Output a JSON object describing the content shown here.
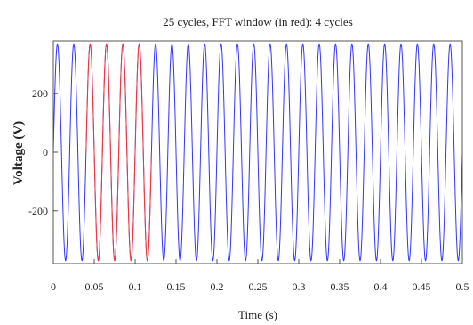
{
  "chart_data": {
    "type": "line",
    "title": "25 cycles, FFT window (in red): 4 cycles",
    "xlabel": "Time (s)",
    "ylabel": "Voltage (V)",
    "xlim": [
      0,
      0.5
    ],
    "ylim": [
      -380,
      380
    ],
    "xticks": [
      0,
      0.05,
      0.1,
      0.15,
      0.2,
      0.25,
      0.3,
      0.35,
      0.4,
      0.45,
      0.5
    ],
    "xtick_labels": [
      "0",
      "0.05",
      "0.1",
      "0.15",
      "0.2",
      "0.25",
      "0.3",
      "0.35",
      "0.4",
      "0.45",
      "0.5"
    ],
    "yticks": [
      -200,
      0,
      200
    ],
    "ytick_labels": [
      "-200",
      "0",
      "200"
    ],
    "grid": false,
    "series": [
      {
        "function": "sine",
        "amplitude": 370,
        "frequency_hz": 50,
        "x_range": [
          0,
          0.5
        ],
        "color": "#3333ff"
      },
      {
        "function": "sine",
        "amplitude": 370,
        "frequency_hz": 50,
        "x_range": [
          0.04,
          0.12
        ],
        "color": "#ff3333"
      }
    ]
  }
}
